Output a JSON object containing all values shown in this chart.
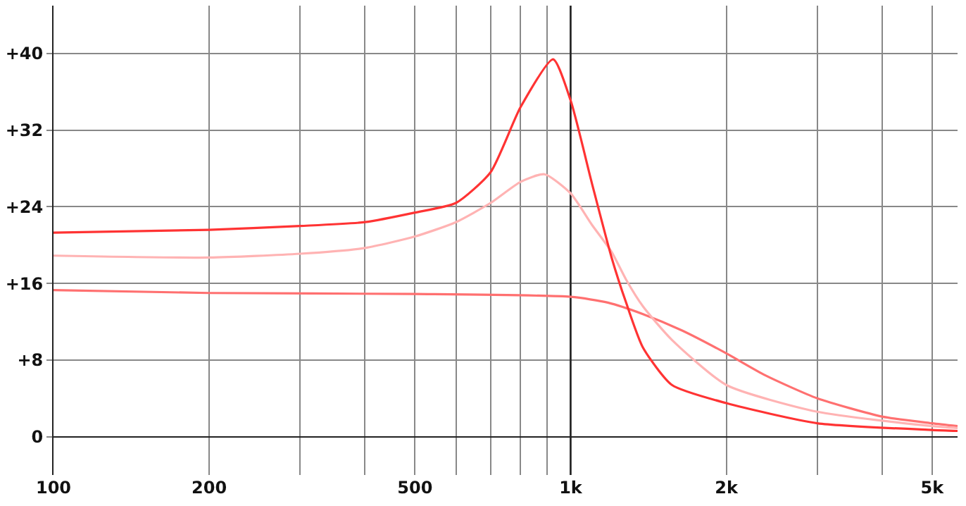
{
  "chart_data": {
    "type": "line",
    "log": "x",
    "grid": true,
    "marker": "none",
    "line_style": "solid",
    "xlim": [
      100,
      5600
    ],
    "ylim": [
      -4,
      45
    ],
    "xticks": [
      100,
      200,
      {
        "value": 300,
        "label": null
      },
      {
        "value": 400,
        "label": null
      },
      500,
      {
        "value": 600,
        "label": null
      },
      {
        "value": 700,
        "label": null
      },
      {
        "value": 800,
        "label": null
      },
      {
        "value": 900,
        "label": null
      },
      {
        "value": 1000,
        "label": "1k"
      },
      {
        "value": 2000,
        "label": "2k"
      },
      {
        "value": 3000,
        "label": null
      },
      {
        "value": 4000,
        "label": null
      },
      {
        "value": 5000,
        "label": "5k"
      }
    ],
    "yticks": [
      0,
      {
        "value": 8,
        "label": "+8"
      },
      {
        "value": 16,
        "label": "+16"
      },
      {
        "value": 24,
        "label": "+24"
      },
      {
        "value": 32,
        "label": "+32"
      },
      {
        "value": 40,
        "label": "+40"
      }
    ],
    "ref_lines": [
      {
        "axis": "x",
        "value": 1000,
        "color": "#222222"
      }
    ],
    "series": [
      {
        "color": "#ff7070",
        "x": [
          100,
          200,
          500,
          1000,
          1180,
          1380,
          1640,
          2000,
          2380,
          3000,
          4000,
          5000,
          5600
        ],
        "values": [
          15.3,
          15.0,
          14.9,
          14.6,
          14.0,
          12.8,
          11.1,
          8.7,
          6.4,
          4.0,
          2.1,
          1.4,
          1.1
        ]
      },
      {
        "color": "#ffb3b3",
        "x": [
          100,
          200,
          300,
          400,
          500,
          600,
          700,
          800,
          890,
          1000,
          1100,
          1200,
          1280,
          1380,
          1570,
          2000,
          3000,
          5000,
          5600
        ],
        "values": [
          18.9,
          18.7,
          19.1,
          19.7,
          20.9,
          22.4,
          24.4,
          26.6,
          27.4,
          25.4,
          22.1,
          19.3,
          16.4,
          13.6,
          10.1,
          5.4,
          2.6,
          1.1,
          0.9
        ]
      },
      {
        "color": "#ff3333",
        "x": [
          100,
          200,
          300,
          400,
          500,
          600,
          700,
          800,
          925,
          1000,
          1100,
          1200,
          1280,
          1380,
          1570,
          2000,
          3000,
          5000,
          5600
        ],
        "values": [
          21.3,
          21.6,
          22.0,
          22.4,
          23.4,
          24.4,
          27.6,
          34.4,
          39.4,
          35.1,
          26.4,
          18.7,
          14.0,
          9.3,
          5.4,
          3.5,
          1.4,
          0.7,
          0.6
        ]
      }
    ]
  }
}
